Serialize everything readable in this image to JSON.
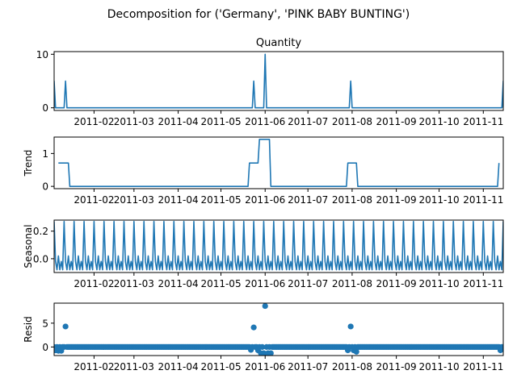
{
  "chart_data": {
    "type": "line",
    "title": "Decomposition for ('Germany', 'PINK BABY BUNTING')",
    "line_color": "#1f77b4",
    "xlim": [
      "2011-01-04",
      "2011-11-15"
    ],
    "x_ticks": [
      "2011-02-01",
      "2011-03-01",
      "2011-04-01",
      "2011-05-01",
      "2011-06-01",
      "2011-07-01",
      "2011-08-01",
      "2011-09-01",
      "2011-10-01",
      "2011-11-01"
    ],
    "x_tick_labels": [
      "2011-02",
      "2011-03",
      "2011-04",
      "2011-05",
      "2011-06",
      "2011-07",
      "2011-08",
      "2011-09",
      "2011-10",
      "2011-11"
    ],
    "panels": [
      {
        "key": "observed",
        "title": "Quantity",
        "ylabel": "",
        "kind": "line",
        "ylim": [
          -0.5,
          10.5
        ],
        "yticks": [
          0,
          10
        ],
        "baseline": 0,
        "spikes": [
          {
            "x": "2011-01-04",
            "y": 5
          },
          {
            "x": "2011-01-12",
            "y": 5
          },
          {
            "x": "2011-05-24",
            "y": 5
          },
          {
            "x": "2011-06-01",
            "y": 10
          },
          {
            "x": "2011-07-31",
            "y": 5
          },
          {
            "x": "2011-11-15",
            "y": 5
          }
        ]
      },
      {
        "key": "trend",
        "title": "",
        "ylabel": "Trend",
        "kind": "line",
        "ylim": [
          -0.07,
          1.5
        ],
        "yticks": [
          0,
          1
        ],
        "points": [
          {
            "x": "2011-01-07",
            "y": 0.71
          },
          {
            "x": "2011-01-14",
            "y": 0.71
          },
          {
            "x": "2011-01-15",
            "y": 0
          },
          {
            "x": "2011-05-20",
            "y": 0
          },
          {
            "x": "2011-05-21",
            "y": 0.71
          },
          {
            "x": "2011-05-27",
            "y": 0.71
          },
          {
            "x": "2011-05-28",
            "y": 1.43
          },
          {
            "x": "2011-06-04",
            "y": 1.43
          },
          {
            "x": "2011-06-05",
            "y": 0
          },
          {
            "x": "2011-07-28",
            "y": 0
          },
          {
            "x": "2011-07-29",
            "y": 0.71
          },
          {
            "x": "2011-08-04",
            "y": 0.71
          },
          {
            "x": "2011-08-05",
            "y": 0
          },
          {
            "x": "2011-11-11",
            "y": 0
          },
          {
            "x": "2011-11-12",
            "y": 0.71
          }
        ]
      },
      {
        "key": "seasonal",
        "title": "",
        "ylabel": "Seasonal",
        "kind": "line",
        "ylim": [
          -0.1,
          0.28
        ],
        "yticks": [
          0,
          0.2
        ],
        "ytick_labels": [
          "0.0",
          "0.2"
        ],
        "period_days": 7,
        "pattern": [
          0.27,
          -0.02,
          -0.08,
          0.02,
          -0.08,
          -0.02,
          -0.08
        ]
      },
      {
        "key": "resid",
        "title": "",
        "ylabel": "Resid",
        "kind": "scatter",
        "ylim": [
          -1.8,
          9.2
        ],
        "yticks": [
          0,
          5
        ],
        "zero_line": true,
        "default_value": 0,
        "outliers": [
          {
            "x": "2011-01-12",
            "y": 4.3
          },
          {
            "x": "2011-05-24",
            "y": 4.1
          },
          {
            "x": "2011-06-01",
            "y": 8.6
          },
          {
            "x": "2011-07-31",
            "y": 4.3
          },
          {
            "x": "2011-01-05",
            "y": -0.7
          },
          {
            "x": "2011-01-07",
            "y": -0.8
          },
          {
            "x": "2011-01-09",
            "y": -0.8
          },
          {
            "x": "2011-05-22",
            "y": -0.6
          },
          {
            "x": "2011-05-27",
            "y": -0.7
          },
          {
            "x": "2011-05-29",
            "y": -1.3
          },
          {
            "x": "2011-05-31",
            "y": -1.3
          },
          {
            "x": "2011-06-03",
            "y": -1.3
          },
          {
            "x": "2011-06-05",
            "y": -1.3
          },
          {
            "x": "2011-07-29",
            "y": -0.7
          },
          {
            "x": "2011-08-02",
            "y": -0.7
          },
          {
            "x": "2011-08-04",
            "y": -1.0
          },
          {
            "x": "2011-11-13",
            "y": -0.7
          }
        ]
      }
    ]
  }
}
